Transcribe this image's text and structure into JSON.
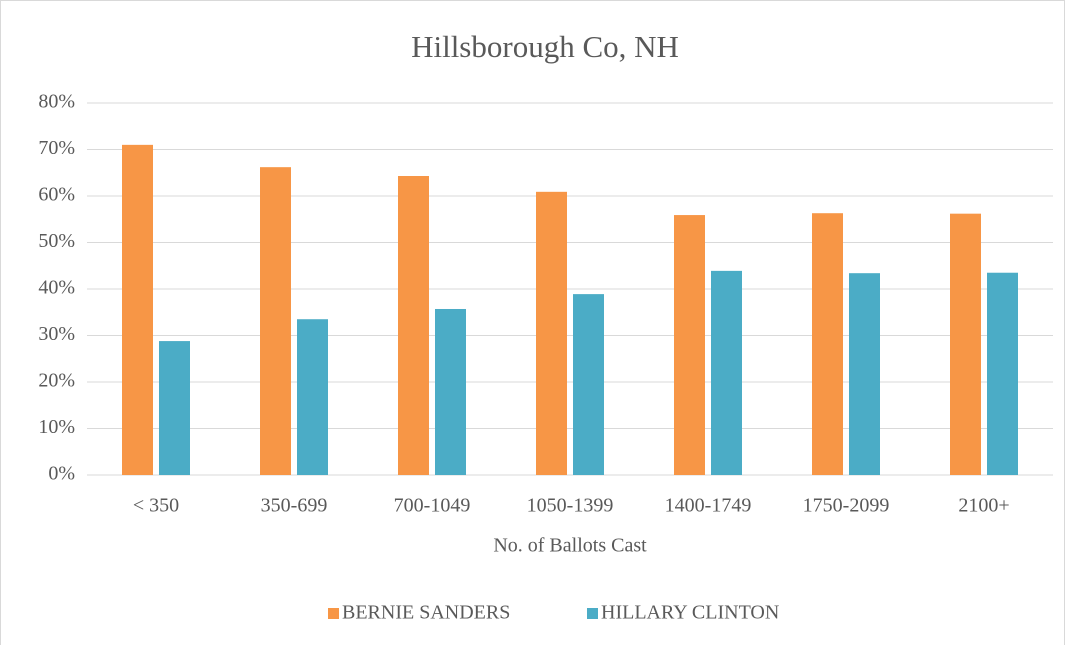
{
  "chart_data": {
    "type": "bar",
    "title": "Hillsborough Co, NH",
    "x_label": "No. of Ballots Cast",
    "categories": [
      "< 350",
      "350-699",
      "700-1049",
      "1050-1399",
      "1400-1749",
      "1750-2099",
      "2100+"
    ],
    "series": [
      {
        "name": "BERNIE SANDERS",
        "color": "#f79646",
        "values": [
          71.0,
          66.2,
          64.3,
          60.9,
          55.9,
          56.3,
          56.2
        ]
      },
      {
        "name": "HILLARY CLINTON",
        "color": "#4bacc6",
        "values": [
          28.8,
          33.5,
          35.7,
          38.9,
          43.9,
          43.4,
          43.5
        ]
      }
    ],
    "ylim": [
      0,
      80
    ],
    "yticks": [
      {
        "value": 0,
        "label": "0%"
      },
      {
        "value": 10,
        "label": "10%"
      },
      {
        "value": 20,
        "label": "20%"
      },
      {
        "value": 30,
        "label": "30%"
      },
      {
        "value": 40,
        "label": "40%"
      },
      {
        "value": 50,
        "label": "50%"
      },
      {
        "value": 60,
        "label": "60%"
      },
      {
        "value": 70,
        "label": "70%"
      },
      {
        "value": 80,
        "label": "80%"
      }
    ],
    "grid": true,
    "legend": "bottom"
  }
}
